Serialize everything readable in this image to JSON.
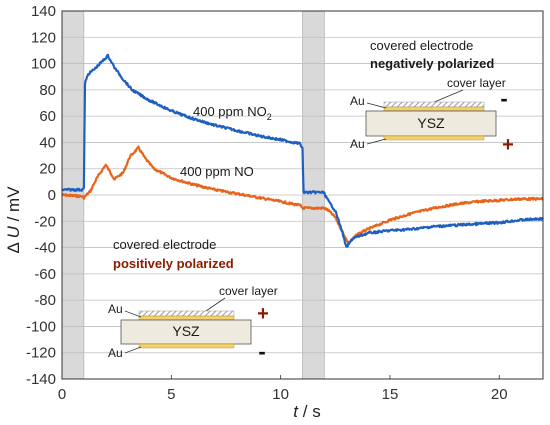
{
  "chart_data": {
    "type": "line",
    "xlabel_italic": "t",
    "xlabel_unit": " / s",
    "ylabel_prefix": "Δ ",
    "ylabel_italic": "U",
    "ylabel_unit": " / mV",
    "xlim": [
      0,
      22
    ],
    "ylim": [
      -140,
      140
    ],
    "x_ticks": [
      0,
      5,
      10,
      15,
      20
    ],
    "y_ticks": [
      140,
      120,
      100,
      80,
      60,
      40,
      20,
      0,
      -20,
      -40,
      -60,
      -80,
      -100,
      -120,
      -140
    ],
    "grid": "horizontal",
    "shaded_regions": [
      {
        "from": 0.0,
        "to": 1.0,
        "color": "#d9d9d9"
      },
      {
        "from": 11.0,
        "to": 12.0,
        "color": "#d9d9d9"
      }
    ],
    "series": [
      {
        "name": "400 ppm NO₂",
        "color": "#1f5fbf",
        "x": [
          0,
          0.9,
          1.0,
          1.05,
          1.2,
          1.5,
          1.8,
          2.1,
          2.4,
          2.8,
          3.2,
          4,
          5,
          6,
          7,
          8,
          9,
          10,
          10.9,
          11.0,
          11.05,
          11.5,
          11.95,
          12.0,
          12.2,
          12.5,
          12.8,
          13.0,
          13.3,
          14,
          15,
          16,
          17,
          18,
          19,
          20,
          21,
          22
        ],
        "y": [
          4,
          4,
          5,
          85,
          92,
          96,
          101,
          106,
          97,
          88,
          80,
          72,
          64,
          58,
          53,
          49,
          45,
          42,
          39,
          35,
          2,
          2,
          2,
          1,
          -5,
          -12,
          -27,
          -40,
          -33,
          -29,
          -27,
          -26,
          -24,
          -23,
          -22,
          -21,
          -19,
          -18
        ]
      },
      {
        "name": "400 ppm NO",
        "color": "#e8641a",
        "x": [
          0,
          0.9,
          1.0,
          1.3,
          1.6,
          2.0,
          2.4,
          2.8,
          3.1,
          3.5,
          3.8,
          4.2,
          5,
          6,
          7,
          8,
          9,
          10,
          10.9,
          11.0,
          12.0,
          12.2,
          12.5,
          12.8,
          13.1,
          13.5,
          14,
          15,
          16,
          17,
          18,
          19,
          20,
          21,
          22
        ],
        "y": [
          0,
          -1,
          -2,
          3,
          13,
          23,
          12,
          17,
          29,
          36,
          28,
          20,
          13,
          8,
          4,
          1,
          -2,
          -5,
          -8,
          -10,
          -10,
          -12,
          -17,
          -27,
          -37,
          -30,
          -26,
          -19,
          -14,
          -10,
          -7,
          -5,
          -4,
          -3,
          -3
        ]
      }
    ],
    "annotations": {
      "no2_label": "400 ppm NO",
      "no2_subscript": "2",
      "no_label": "400 ppm NO",
      "top_right_line1": "covered electrode",
      "top_right_line2": "negatively polarized",
      "bottom_left_line1": "covered electrode",
      "bottom_left_line2": "positively polarized"
    },
    "insets": {
      "top_right": {
        "cover_layer": "cover layer",
        "au_top": "Au",
        "au_bottom": "Au",
        "ysz": "YSZ",
        "sign_top": "-",
        "sign_bottom": "+"
      },
      "bottom_left": {
        "cover_layer": "cover layer",
        "au_top": "Au",
        "au_bottom": "Au",
        "ysz": "YSZ",
        "sign_top": "+",
        "sign_bottom": "-"
      }
    }
  },
  "colors": {
    "gridline": "#bfbfbf",
    "shade": "#d9d9d9",
    "no2": "#1f5fbf",
    "no": "#e8641a",
    "gold": "#f2d16b",
    "ysz_fill": "#eeeade",
    "hatch": "#9a9a9a",
    "plus_red": "#8b1a00"
  }
}
